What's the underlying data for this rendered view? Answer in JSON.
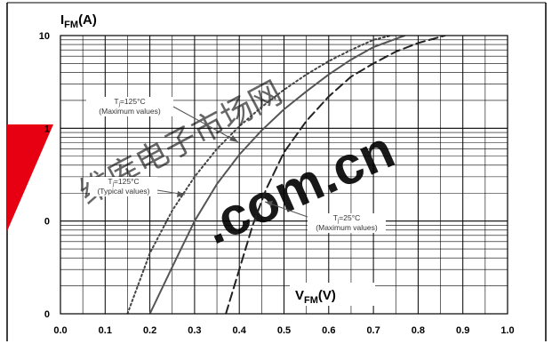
{
  "chart_data": {
    "type": "line",
    "x_scale": "linear",
    "y_scale": "log",
    "xlim": [
      0.0,
      1.0
    ],
    "ylim": [
      0.01,
      10
    ],
    "grid": true,
    "x_ticks": [
      "0.0",
      "0.1",
      "0.2",
      "0.3",
      "0.4",
      "0.5",
      "0.6",
      "0.7",
      "0.8",
      "0.9",
      "1.0"
    ],
    "y_ticks": [
      {
        "value": 10,
        "label": "10"
      },
      {
        "value": 1,
        "label": "1"
      },
      {
        "value": 0.1,
        "label": "0"
      },
      {
        "value": 0.01,
        "label": "0"
      }
    ],
    "ylabel": {
      "main": "I",
      "sub": "FM",
      "unit": "(A)"
    },
    "xlabel": {
      "main": "V",
      "sub": "FM",
      "unit": "(V)"
    },
    "series": [
      {
        "name": "T=125°C (Maximum values)",
        "style": "solid",
        "color": "#555555",
        "x": [
          0.2,
          0.25,
          0.3,
          0.35,
          0.4,
          0.45,
          0.5,
          0.55,
          0.6,
          0.65,
          0.7,
          0.77
        ],
        "y": [
          0.01,
          0.032,
          0.1,
          0.25,
          0.52,
          0.95,
          1.6,
          2.5,
          3.8,
          5.5,
          7.5,
          10
        ]
      },
      {
        "name": "T=125°C (Typical values)",
        "style": "dotted",
        "color": "#444444",
        "x": [
          0.15,
          0.2,
          0.25,
          0.3,
          0.35,
          0.4,
          0.45,
          0.5,
          0.55,
          0.6,
          0.65,
          0.7,
          0.74
        ],
        "y": [
          0.01,
          0.045,
          0.13,
          0.3,
          0.6,
          1.05,
          1.7,
          2.6,
          3.8,
          5.3,
          7.0,
          9.0,
          10
        ]
      },
      {
        "name": "T=25°C (Maximum values)",
        "style": "dashed",
        "color": "#222222",
        "x": [
          0.37,
          0.4,
          0.43,
          0.46,
          0.5,
          0.55,
          0.6,
          0.65,
          0.7,
          0.75,
          0.8,
          0.86
        ],
        "y": [
          0.01,
          0.03,
          0.09,
          0.22,
          0.55,
          1.2,
          2.2,
          3.6,
          5.0,
          6.7,
          8.3,
          10
        ]
      }
    ],
    "annotations": [
      {
        "line1_main": "T",
        "line1_sub": "j",
        "line1_rest": "=125°C",
        "line2": "(Maximum values)"
      },
      {
        "line1_main": "T",
        "line1_sub": "j",
        "line1_rest": "=125°C",
        "line2": "(Typical values)"
      },
      {
        "line1_main": "T",
        "line1_sub": "j",
        "line1_rest": "=25°C",
        "line2": "(Maximum values)"
      }
    ]
  },
  "watermark": {
    "text": ".com.cn",
    "logo_text": "维库电子市场网"
  }
}
